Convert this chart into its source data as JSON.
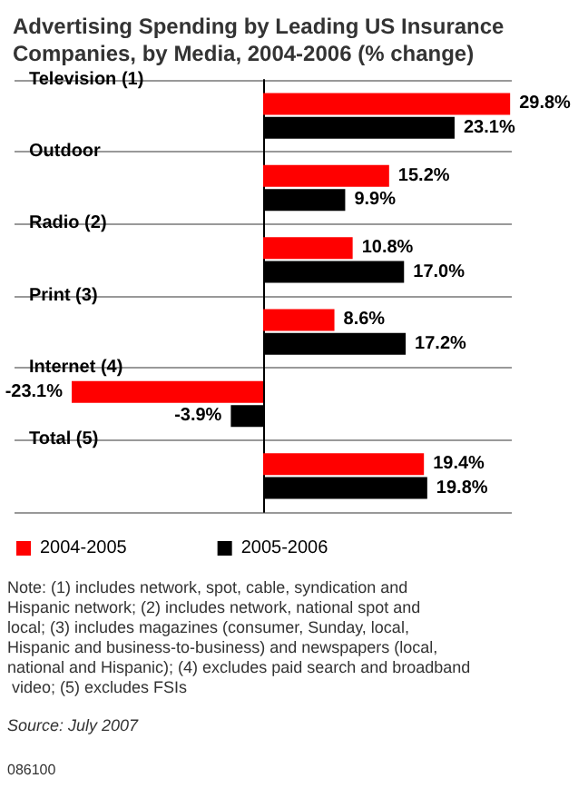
{
  "chart_data": {
    "type": "bar",
    "orientation": "horizontal",
    "title": "Advertising Spending by Leading US Insurance Companies, by Media, 2004-2006 (% change)",
    "categories": [
      "Television (1)",
      "Outdoor",
      "Radio (2)",
      "Print (3)",
      "Internet (4)",
      "Total (5)"
    ],
    "series": [
      {
        "name": "2004-2005",
        "color": "#ff0000",
        "values": [
          29.8,
          15.2,
          10.8,
          8.6,
          -23.1,
          19.4
        ],
        "value_labels": [
          "29.8%",
          "15.2%",
          "10.8%",
          "8.6%",
          "-23.1%",
          "19.4%"
        ]
      },
      {
        "name": "2005-2006",
        "color": "#000000",
        "values": [
          23.1,
          9.9,
          17.0,
          17.2,
          -3.9,
          19.8
        ],
        "value_labels": [
          "23.1%",
          "9.9%",
          "17.0%",
          "17.2%",
          "-3.9%",
          "19.8%"
        ]
      }
    ],
    "grid": "y",
    "legend": "bottom left",
    "annotations": [
      "Note: (1) includes network, spot, cable, syndication and Hispanic network; (2) includes network, national spot and local; (3) includes magazines (consumer, Sunday, local, Hispanic and business-to-business) and newspapers (local, national and Hispanic); (4) excludes paid search and broadband video; (5) excludes FSIs",
      "Source: July 2007",
      "086100"
    ]
  }
}
